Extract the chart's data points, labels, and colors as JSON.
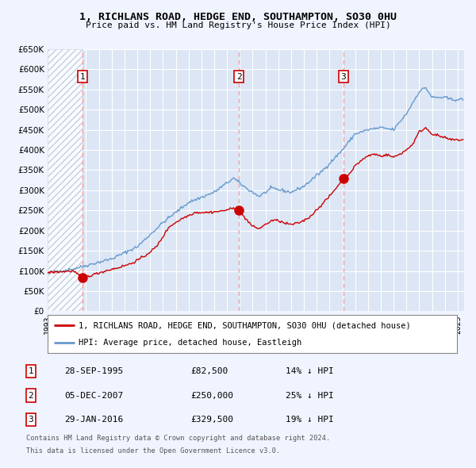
{
  "title_line1": "1, RICHLANS ROAD, HEDGE END, SOUTHAMPTON, SO30 0HU",
  "title_line2": "Price paid vs. HM Land Registry's House Price Index (HPI)",
  "property_label": "1, RICHLANS ROAD, HEDGE END, SOUTHAMPTON, SO30 0HU (detached house)",
  "hpi_label": "HPI: Average price, detached house, Eastleigh",
  "transactions": [
    {
      "num": 1,
      "date": "28-SEP-1995",
      "price": 82500,
      "pct": "14%",
      "dir": "↓"
    },
    {
      "num": 2,
      "date": "05-DEC-2007",
      "price": 250000,
      "pct": "25%",
      "dir": "↓"
    },
    {
      "num": 3,
      "date": "29-JAN-2016",
      "price": 329500,
      "pct": "19%",
      "dir": "↓"
    }
  ],
  "transaction_dates_decimal": [
    1995.74,
    2007.92,
    2016.08
  ],
  "transaction_prices": [
    82500,
    250000,
    329500
  ],
  "footer_line1": "Contains HM Land Registry data © Crown copyright and database right 2024.",
  "footer_line2": "This data is licensed under the Open Government Licence v3.0.",
  "bg_color": "#f0f4ff",
  "plot_bg_color": "#dce6f5",
  "hatch_color": "#b8c8dc",
  "grid_color": "#ffffff",
  "red_color": "#cc0000",
  "blue_color": "#6699cc",
  "dashed_line_color": "#ff9999",
  "ylim": [
    0,
    650000
  ],
  "xlim_start": 1993.0,
  "xlim_end": 2025.5,
  "hatch_end": 1995.74
}
